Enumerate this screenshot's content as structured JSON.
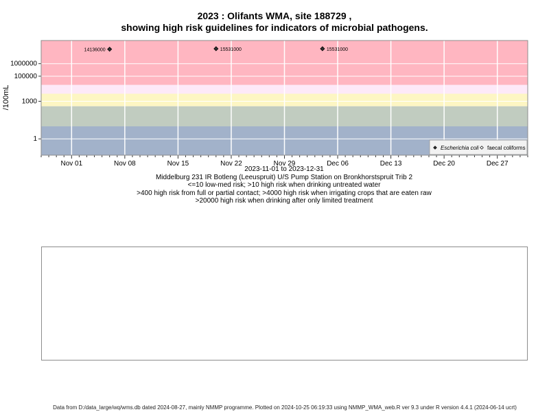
{
  "title_line1": "2023 : Olifants WMA, site 188729 ,",
  "title_line2": "showing high risk guidelines for indicators of microbial pathogens.",
  "colors": {
    "band_high": "#ffb6c1",
    "band_lavender": "#fde9f8",
    "band_yellow": "#fdf6c3",
    "band_grey": "#c1ccc0",
    "band_blue": "#a2b2ca",
    "grid": "#ffffff",
    "frame": "#8c8c8c"
  },
  "chart_data": {
    "type": "scatter",
    "y_label": "/100mL",
    "y_scale": "log10",
    "ylim": [
      0.05,
      70000000
    ],
    "xlim": [
      "2023-10-28",
      "2023-12-31"
    ],
    "y_ticks": [
      {
        "value": 1,
        "label": "1"
      },
      {
        "value": 1000,
        "label": "1000"
      },
      {
        "value": 100000,
        "label": "100000"
      },
      {
        "value": 1000000,
        "label": "1000000"
      }
    ],
    "x_ticks": [
      {
        "date": "2023-11-01",
        "label": "Nov 01"
      },
      {
        "date": "2023-11-08",
        "label": "Nov 08"
      },
      {
        "date": "2023-11-15",
        "label": "Nov 15"
      },
      {
        "date": "2023-11-22",
        "label": "Nov 22"
      },
      {
        "date": "2023-11-29",
        "label": "Nov 29"
      },
      {
        "date": "2023-12-06",
        "label": "Dec 06"
      },
      {
        "date": "2023-12-13",
        "label": "Dec 13"
      },
      {
        "date": "2023-12-20",
        "label": "Dec 20"
      },
      {
        "date": "2023-12-27",
        "label": "Dec 27"
      }
    ],
    "risk_bands": [
      {
        "from": 20000,
        "to": 70000000,
        "color": "band_high"
      },
      {
        "from": 4000,
        "to": 20000,
        "color": "band_lavender"
      },
      {
        "from": 400,
        "to": 4000,
        "color": "band_yellow"
      },
      {
        "from": 10,
        "to": 400,
        "color": "band_grey"
      },
      {
        "from": 0.05,
        "to": 10,
        "color": "band_blue"
      }
    ],
    "series": [
      {
        "name": "Escherichia coli",
        "marker": "filled-diamond",
        "points": [
          {
            "date": "2023-11-06",
            "value": 14136000,
            "label": "14136000"
          },
          {
            "date": "2023-11-20",
            "value": 15531000,
            "label": "15531000"
          },
          {
            "date": "2023-12-04",
            "value": 15531000,
            "label": "15531000"
          }
        ]
      },
      {
        "name": "faecal coliforms",
        "marker": "open-diamond",
        "points": []
      }
    ],
    "legend_position": "bottom-right"
  },
  "captions": {
    "date_range": "2023-11-01 to 2023-12-31",
    "site": "Middelburg 231 IR Botleng (Leeuspruit) U/S Pump Station on Bronkhorstspruit Trib 2",
    "risk_line1": "<=10 low-med risk; >10 high risk when drinking untreated water",
    "risk_line2": ">400 high risk from full or partial contact; >4000 high risk when irrigating crops that are eaten raw",
    "risk_line3": ">20000 high risk when drinking after only limited treatment"
  },
  "footer": "Data from D:/data_large/wq/wms.db dated 2024-08-27, mainly NMMP programme. Plotted on 2024-10-25 06:19:33 using NMMP_WMA_web.R ver 9.3 under R version 4.4.1 (2024-06-14 ucrt)"
}
